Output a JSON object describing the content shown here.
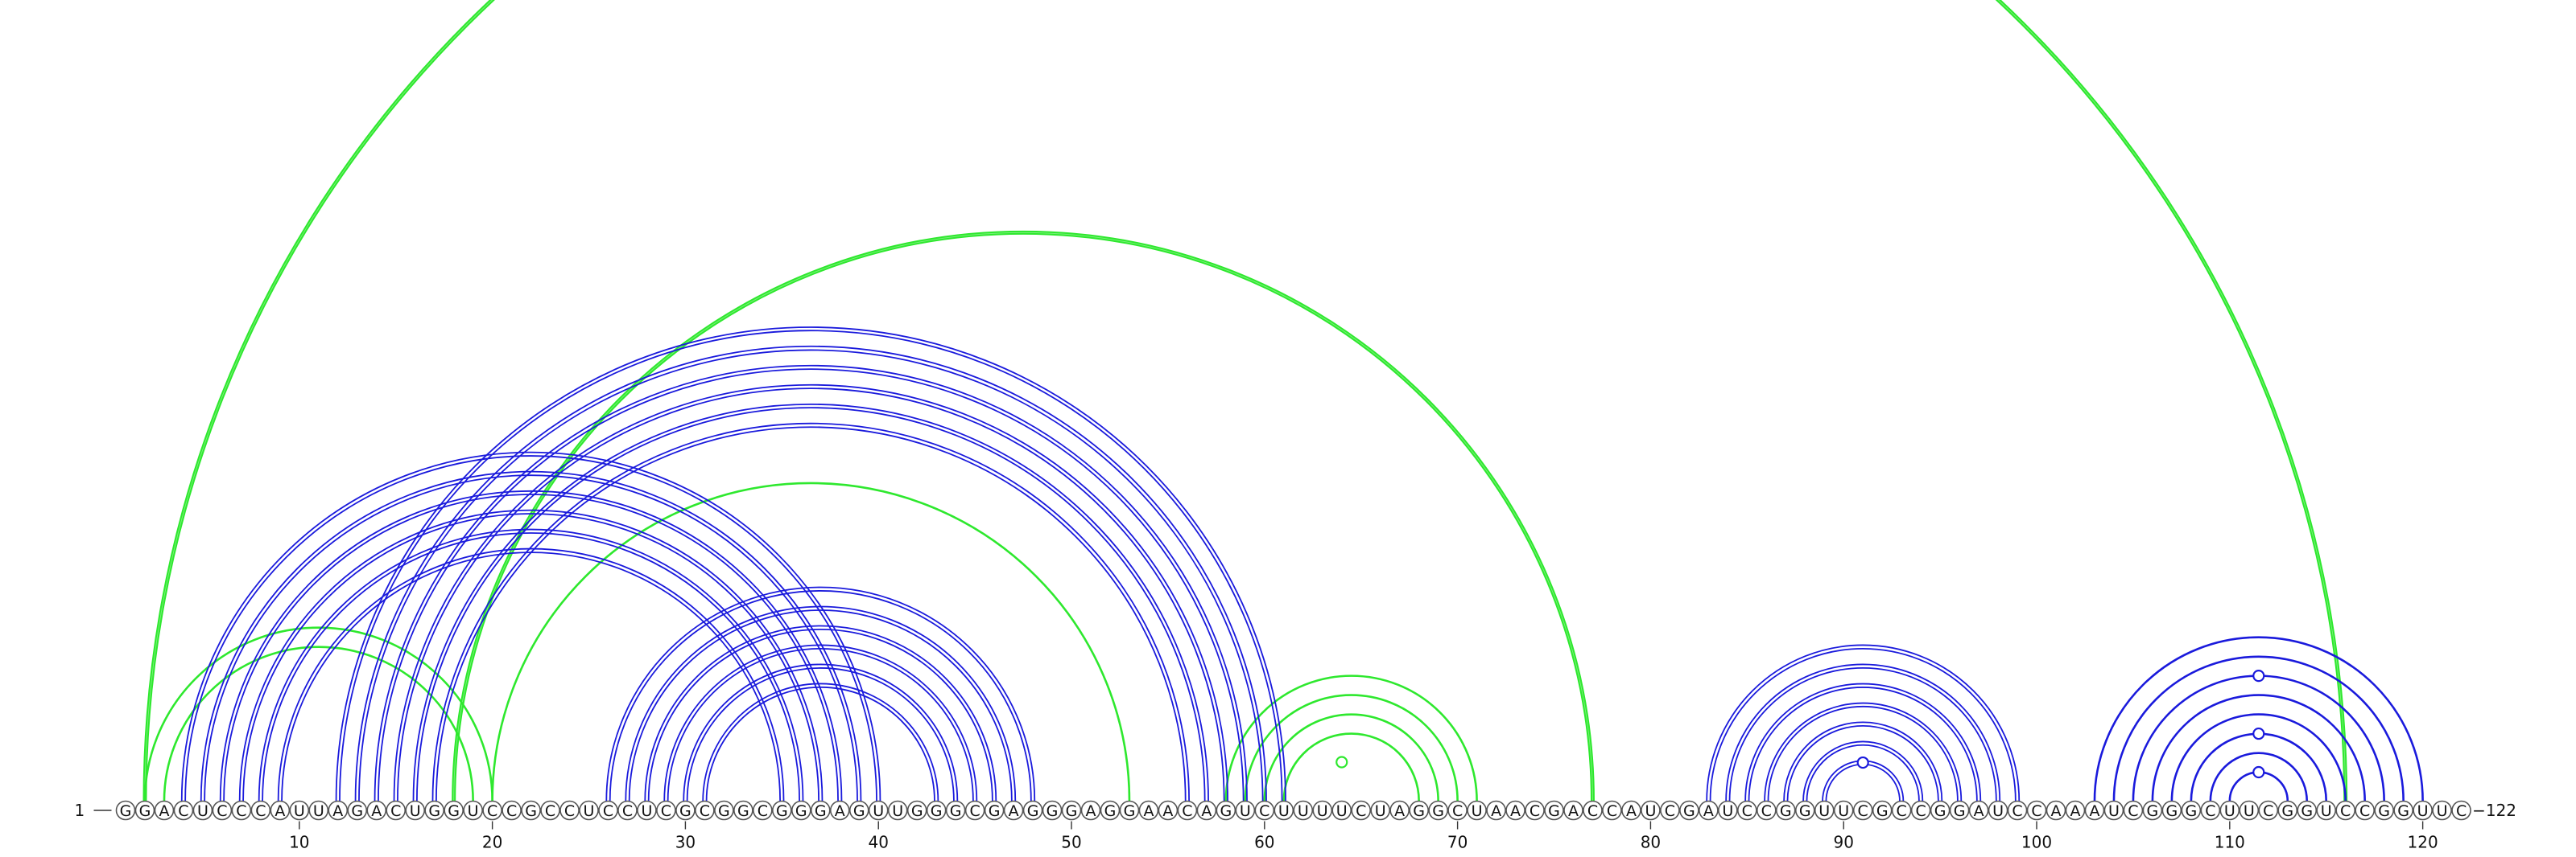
{
  "diagram": {
    "type": "rna-arc-diagram",
    "sequence": "GGACUCCCAUUAGACUGGUCCGCCUCCUCGCGGCGGGAGUUGGGCGAGGGAGGAACAGUCUUUUCUAGGCUAACGACCAUCGAUCCGGUUCGCCGGAUCCAAAUCGGGCUUCGGUCCGGUUC",
    "start_label": "1",
    "end_label": "122",
    "ticks": [
      10,
      20,
      30,
      40,
      50,
      60,
      70,
      80,
      90,
      100,
      110,
      120
    ],
    "colors": {
      "blue": "#1a1adc",
      "green": "#2ee82e"
    },
    "arc_groups": [
      {
        "color": "green",
        "pairs": [
          [
            2,
            116
          ]
        ],
        "style": "thick"
      },
      {
        "color": "green",
        "pairs": [
          [
            18,
            77
          ]
        ],
        "style": "thick"
      },
      {
        "color": "green",
        "pairs": [
          [
            20,
            53
          ]
        ],
        "style": "single"
      },
      {
        "color": "green",
        "pairs": [
          [
            2,
            20
          ],
          [
            3,
            19
          ]
        ],
        "style": "single"
      },
      {
        "color": "green",
        "pairs": [
          [
            58,
            71
          ],
          [
            59,
            70
          ],
          [
            60,
            69
          ],
          [
            61,
            68
          ]
        ],
        "style": "single"
      },
      {
        "color": "blue",
        "pairs": [
          [
            4,
            40
          ],
          [
            5,
            39
          ],
          [
            6,
            38
          ],
          [
            7,
            37
          ],
          [
            8,
            36
          ],
          [
            9,
            35
          ]
        ],
        "style": "double"
      },
      {
        "color": "blue",
        "pairs": [
          [
            12,
            61
          ],
          [
            13,
            60
          ],
          [
            14,
            59
          ],
          [
            15,
            58
          ],
          [
            16,
            57
          ],
          [
            17,
            56
          ]
        ],
        "style": "double"
      },
      {
        "color": "blue",
        "pairs": [
          [
            26,
            48
          ],
          [
            27,
            47
          ],
          [
            28,
            46
          ],
          [
            29,
            45
          ],
          [
            30,
            44
          ],
          [
            31,
            43
          ]
        ],
        "style": "double"
      },
      {
        "color": "blue",
        "pairs": [
          [
            83,
            99
          ],
          [
            84,
            98
          ],
          [
            85,
            97
          ],
          [
            86,
            96
          ],
          [
            87,
            95
          ],
          [
            88,
            94
          ],
          [
            89,
            93
          ]
        ],
        "style": "double"
      },
      {
        "color": "blue",
        "pairs": [
          [
            103,
            120
          ],
          [
            104,
            119
          ],
          [
            105,
            118
          ],
          [
            106,
            117
          ],
          [
            107,
            116
          ],
          [
            108,
            115
          ],
          [
            109,
            114
          ],
          [
            110,
            113
          ]
        ],
        "style": "single"
      }
    ],
    "junctions": [
      {
        "position": 64,
        "color": "green",
        "level": 1
      },
      {
        "position": 91,
        "color": "blue",
        "level": 1
      },
      {
        "position": 111.5,
        "color": "blue",
        "level": 1
      },
      {
        "position": 111.5,
        "color": "blue",
        "level": 2
      },
      {
        "position": 111.5,
        "color": "blue",
        "level": 3
      }
    ]
  }
}
